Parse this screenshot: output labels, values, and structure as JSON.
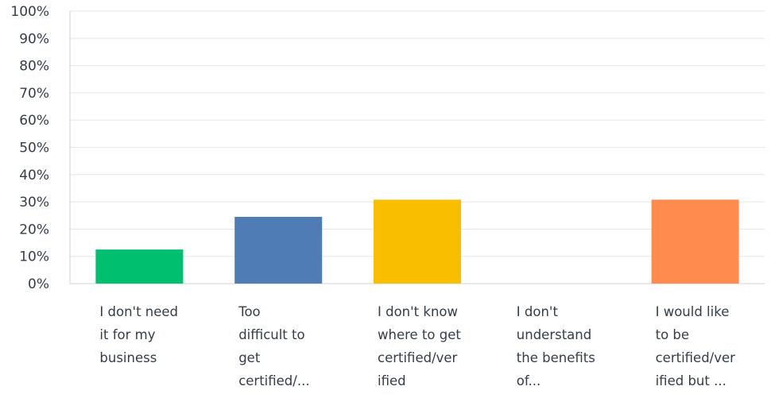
{
  "chart_data": {
    "type": "bar",
    "categories": [
      [
        "I don't need",
        "it for my",
        "business"
      ],
      [
        "Too",
        "difficult to",
        "get",
        "certified/..."
      ],
      [
        "I don't know",
        "where to get",
        "certified/ver",
        "ified"
      ],
      [
        "I don't",
        "understand",
        "the benefits",
        "of..."
      ],
      [
        "I would like",
        "to be",
        "certified/ver",
        "ified but ..."
      ]
    ],
    "values": [
      12.5,
      24.5,
      30.8,
      0,
      30.8
    ],
    "colors": [
      "#00bf6f",
      "#507cb6",
      "#f9be00",
      "#6bc8cd",
      "#ff8b4f"
    ],
    "yticks": [
      "0%",
      "10%",
      "20%",
      "30%",
      "40%",
      "50%",
      "60%",
      "70%",
      "80%",
      "90%",
      "100%"
    ],
    "ylim": [
      0,
      100
    ],
    "grid": true,
    "title": "",
    "xlabel": "",
    "ylabel": ""
  }
}
